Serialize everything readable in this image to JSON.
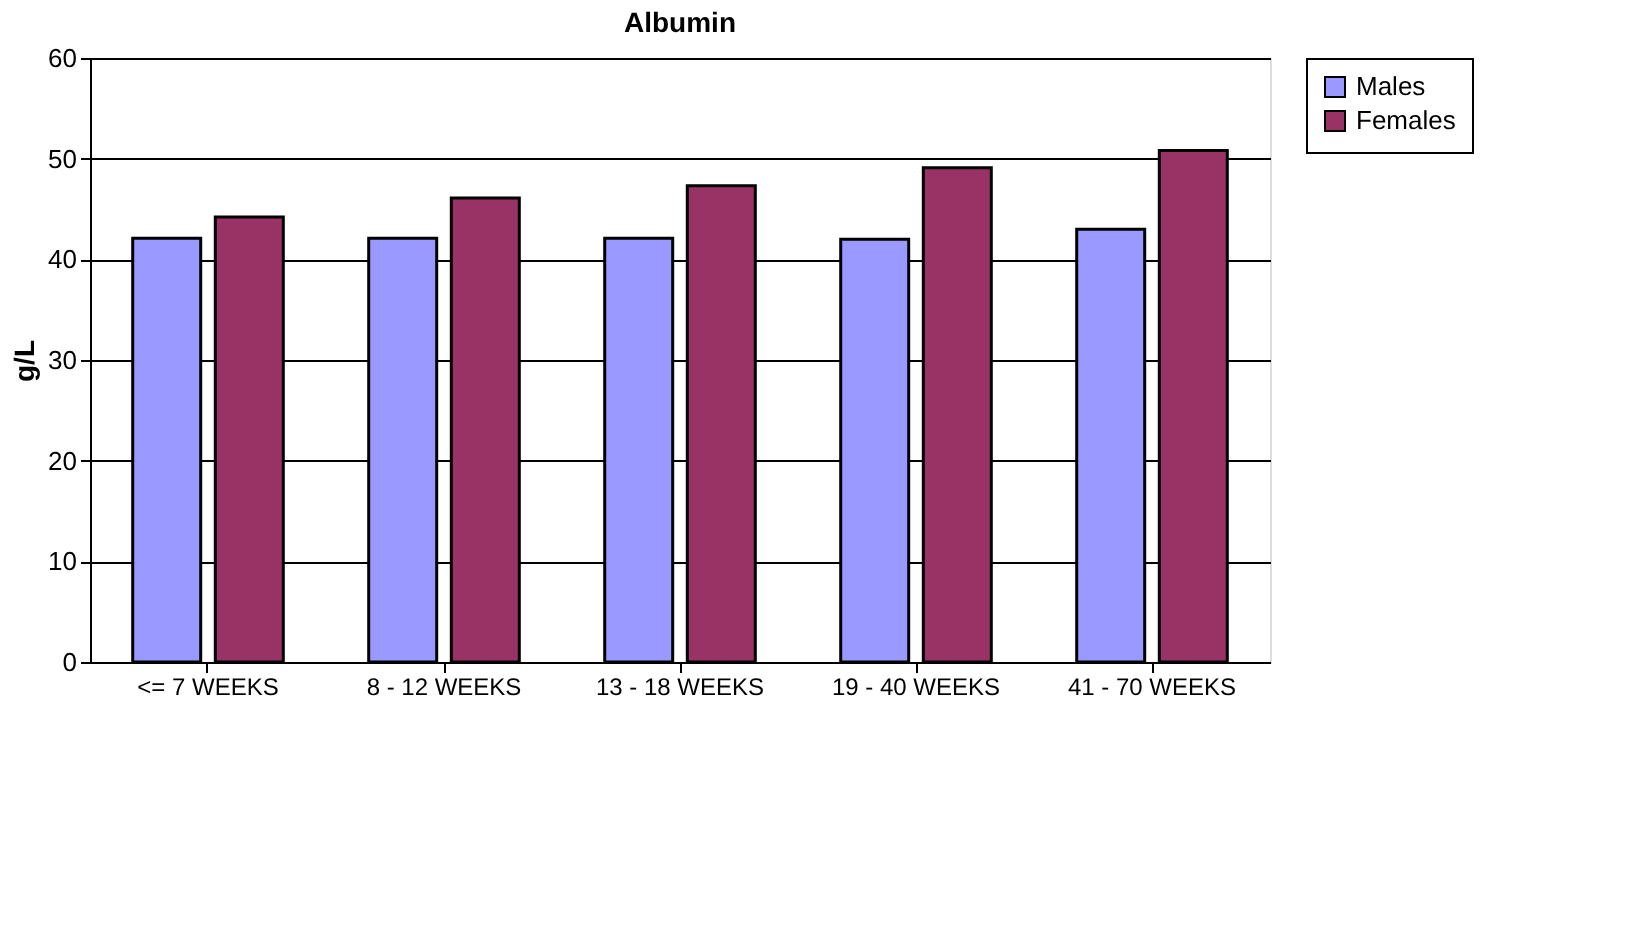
{
  "chart_data": {
    "type": "bar",
    "title": "Albumin",
    "ylabel": "g/L",
    "categories": [
      "<= 7 WEEKS",
      "8 - 12 WEEKS",
      "13 - 18 WEEKS",
      "19 - 40 WEEKS",
      "41 - 70 WEEKS"
    ],
    "series": [
      {
        "name": "Males",
        "color": "#9999ff",
        "values": [
          42.1,
          42.1,
          42.1,
          42.0,
          43.0
        ]
      },
      {
        "name": "Females",
        "color": "#993366",
        "values": [
          44.2,
          46.1,
          47.3,
          49.1,
          50.8
        ]
      }
    ],
    "ylim": [
      0,
      60
    ],
    "yticks": [
      0,
      10,
      20,
      30,
      40,
      50,
      60
    ],
    "grid": "y",
    "legend": "right"
  }
}
